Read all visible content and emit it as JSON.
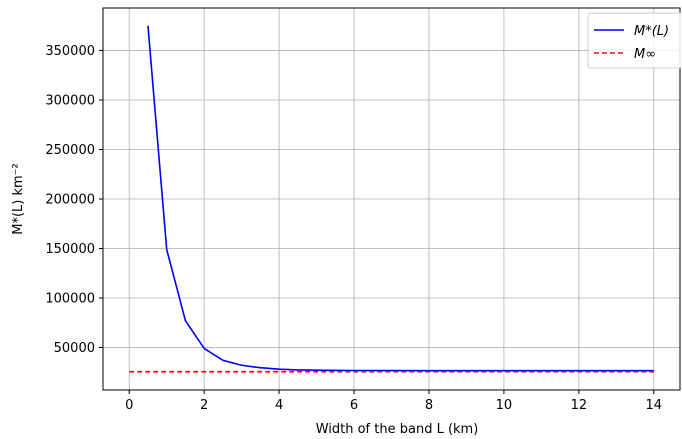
{
  "chart_data": {
    "type": "line",
    "title": "",
    "xlabel": "Width of the band L (km)",
    "ylabel": "M*(L) km⁻²",
    "xlim": [
      -0.7,
      14.7
    ],
    "ylim": [
      7000,
      393000
    ],
    "xticks": [
      0,
      2,
      4,
      6,
      8,
      10,
      12,
      14
    ],
    "yticks": [
      50000,
      100000,
      150000,
      200000,
      250000,
      300000,
      350000
    ],
    "grid": true,
    "legend_position": "top-right",
    "series": [
      {
        "name": "M*(L)",
        "color": "#0000ff",
        "style": "solid",
        "x": [
          0.5,
          1.0,
          1.5,
          2.0,
          2.5,
          3.0,
          3.5,
          4.0,
          4.5,
          5.0,
          6.0,
          7.0,
          8.0,
          9.0,
          10.0,
          11.0,
          12.0,
          13.0,
          14.0
        ],
        "y": [
          375000,
          149000,
          77000,
          49000,
          37000,
          32000,
          29500,
          28000,
          27300,
          27000,
          26700,
          26600,
          26500,
          26500,
          26500,
          26500,
          26500,
          26500,
          26500
        ]
      },
      {
        "name": "M∞",
        "color": "#ff0000",
        "style": "dashed",
        "x": [
          0,
          14
        ],
        "y": [
          25500,
          25500
        ]
      }
    ]
  }
}
